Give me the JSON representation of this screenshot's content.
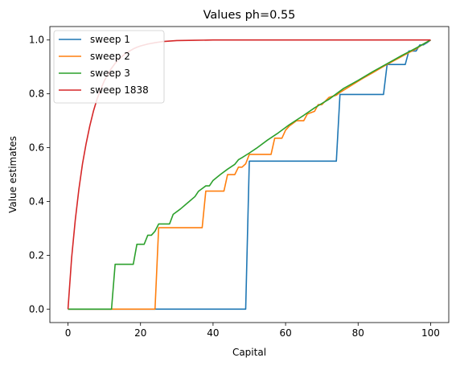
{
  "chart_data": {
    "type": "line",
    "title": "Values ph=0.55",
    "xlabel": "Capital",
    "ylabel": "Value estimates",
    "xlim": [
      -5,
      105
    ],
    "ylim": [
      -0.05,
      1.05
    ],
    "xticks": [
      0,
      20,
      40,
      60,
      80,
      100
    ],
    "yticks": [
      0.0,
      0.2,
      0.4,
      0.6,
      0.8,
      1.0
    ],
    "xtick_labels": [
      "0",
      "20",
      "40",
      "60",
      "80",
      "100"
    ],
    "ytick_labels": [
      "0.0",
      "0.2",
      "0.4",
      "0.6",
      "0.8",
      "1.0"
    ],
    "grid": false,
    "legend_position": "top-left",
    "series": [
      {
        "name": "sweep 1",
        "color": "#1f77b4",
        "points": [
          [
            0,
            0
          ],
          [
            49,
            0
          ],
          [
            50,
            0.55
          ],
          [
            74,
            0.55
          ],
          [
            75,
            0.7975
          ],
          [
            87,
            0.7975
          ],
          [
            88,
            0.9089
          ],
          [
            93,
            0.9089
          ],
          [
            94,
            0.959
          ],
          [
            96,
            0.959
          ],
          [
            97,
            0.9816
          ],
          [
            98,
            0.9816
          ],
          [
            99,
            0.99
          ],
          [
            100,
            1.0
          ]
        ]
      },
      {
        "name": "sweep 2",
        "color": "#ff7f0e",
        "points": [
          [
            0,
            0
          ],
          [
            24,
            0
          ],
          [
            25,
            0.3025
          ],
          [
            37,
            0.3025
          ],
          [
            38,
            0.4386
          ],
          [
            43,
            0.4386
          ],
          [
            44,
            0.4999
          ],
          [
            46,
            0.4999
          ],
          [
            47,
            0.5274
          ],
          [
            48,
            0.5274
          ],
          [
            49,
            0.54
          ],
          [
            50,
            0.575
          ],
          [
            56,
            0.575
          ],
          [
            57,
            0.635
          ],
          [
            59,
            0.635
          ],
          [
            60,
            0.665
          ],
          [
            61,
            0.68
          ],
          [
            62,
            0.69
          ],
          [
            63,
            0.7
          ],
          [
            65,
            0.7
          ],
          [
            66,
            0.725
          ],
          [
            68,
            0.735
          ],
          [
            69,
            0.76
          ],
          [
            70,
            0.76
          ],
          [
            72,
            0.787
          ],
          [
            74,
            0.795
          ],
          [
            75,
            0.805
          ],
          [
            78,
            0.83
          ],
          [
            81,
            0.855
          ],
          [
            84,
            0.878
          ],
          [
            87,
            0.902
          ],
          [
            90,
            0.924
          ],
          [
            93,
            0.946
          ],
          [
            96,
            0.967
          ],
          [
            98,
            0.985
          ],
          [
            100,
            1.0
          ]
        ]
      },
      {
        "name": "sweep 3",
        "color": "#2ca02c",
        "points": [
          [
            0,
            0
          ],
          [
            12,
            0
          ],
          [
            13,
            0.1664
          ],
          [
            18,
            0.1664
          ],
          [
            19,
            0.2409
          ],
          [
            21,
            0.2409
          ],
          [
            22,
            0.2744
          ],
          [
            23,
            0.2744
          ],
          [
            24,
            0.2895
          ],
          [
            25,
            0.3163
          ],
          [
            28,
            0.3163
          ],
          [
            29,
            0.352
          ],
          [
            31,
            0.372
          ],
          [
            33,
            0.395
          ],
          [
            35,
            0.418
          ],
          [
            36,
            0.438
          ],
          [
            38,
            0.458
          ],
          [
            39,
            0.458
          ],
          [
            40,
            0.478
          ],
          [
            42,
            0.5
          ],
          [
            44,
            0.52
          ],
          [
            46,
            0.538
          ],
          [
            47,
            0.555
          ],
          [
            48,
            0.563
          ],
          [
            50,
            0.58
          ],
          [
            52,
            0.598
          ],
          [
            55,
            0.628
          ],
          [
            58,
            0.655
          ],
          [
            61,
            0.685
          ],
          [
            65,
            0.72
          ],
          [
            68,
            0.748
          ],
          [
            72,
            0.78
          ],
          [
            76,
            0.82
          ],
          [
            80,
            0.85
          ],
          [
            84,
            0.882
          ],
          [
            88,
            0.912
          ],
          [
            92,
            0.942
          ],
          [
            96,
            0.97
          ],
          [
            100,
            1.0
          ]
        ]
      },
      {
        "name": "sweep 1838",
        "color": "#d62728",
        "points": [
          [
            0,
            0
          ],
          [
            1,
            0.19
          ],
          [
            2,
            0.33
          ],
          [
            3,
            0.445
          ],
          [
            4,
            0.54
          ],
          [
            5,
            0.615
          ],
          [
            6,
            0.68
          ],
          [
            7,
            0.735
          ],
          [
            8,
            0.78
          ],
          [
            9,
            0.815
          ],
          [
            10,
            0.848
          ],
          [
            11,
            0.873
          ],
          [
            12,
            0.895
          ],
          [
            13,
            0.913
          ],
          [
            14,
            0.928
          ],
          [
            15,
            0.94
          ],
          [
            16,
            0.951
          ],
          [
            17,
            0.959
          ],
          [
            18,
            0.967
          ],
          [
            19,
            0.973
          ],
          [
            20,
            0.978
          ],
          [
            22,
            0.985
          ],
          [
            24,
            0.99
          ],
          [
            26,
            0.994
          ],
          [
            28,
            0.996
          ],
          [
            30,
            0.998
          ],
          [
            35,
            0.999
          ],
          [
            40,
            1.0
          ],
          [
            100,
            1.0
          ]
        ]
      }
    ]
  }
}
